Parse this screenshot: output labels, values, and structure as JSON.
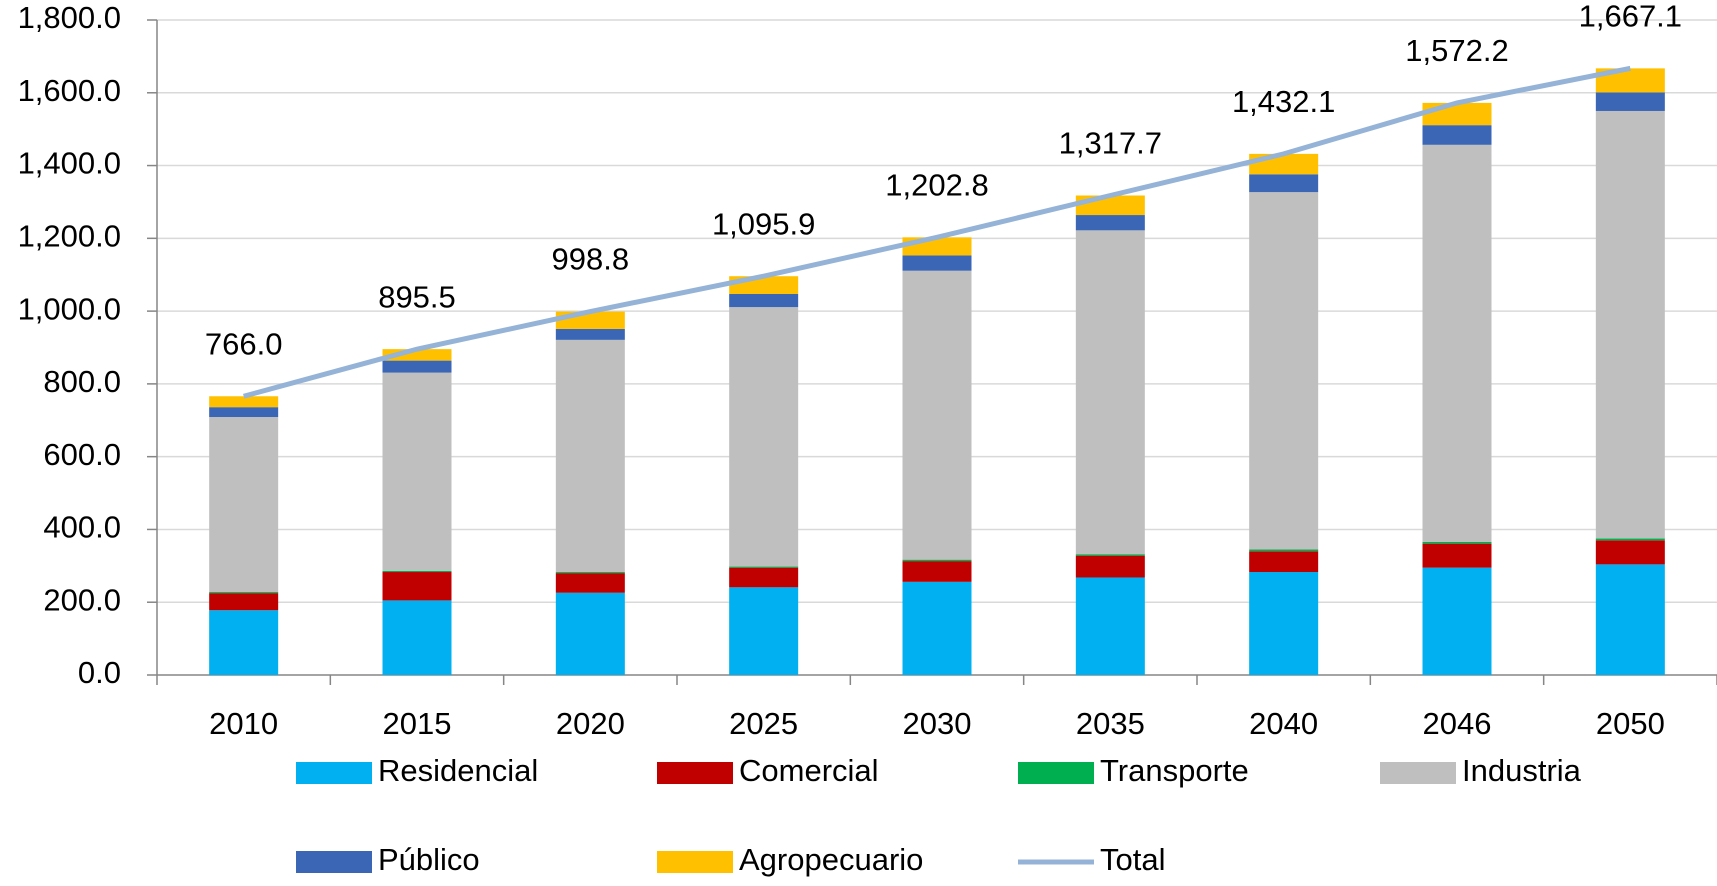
{
  "chart_data": {
    "type": "bar",
    "stacked": true,
    "categories": [
      "2010",
      "2015",
      "2020",
      "2025",
      "2030",
      "2035",
      "2040",
      "2046",
      "2050"
    ],
    "series": [
      {
        "name": "Residencial",
        "color": "#00b0f0",
        "values": [
          178,
          205,
          226,
          241,
          256,
          268,
          283,
          295,
          304
        ]
      },
      {
        "name": "Comercial",
        "color": "#c00000",
        "values": [
          47,
          78,
          54,
          54,
          57,
          60,
          57,
          66,
          66
        ]
      },
      {
        "name": "Transporte",
        "color": "#00b050",
        "values": [
          3,
          3,
          3,
          3,
          4,
          4,
          5,
          5,
          5
        ]
      },
      {
        "name": "Industria",
        "color": "#bfbfbf",
        "values": [
          481,
          545,
          638,
          713,
          794,
          890,
          982,
          1091,
          1175
        ]
      },
      {
        "name": "Público",
        "color": "#3a66b5",
        "values": [
          27,
          33,
          30,
          36,
          42,
          42,
          49,
          54,
          51
        ]
      },
      {
        "name": "Agropecuario",
        "color": "#ffc000",
        "values": [
          30,
          31.5,
          47.8,
          48.9,
          49.8,
          53.7,
          56.1,
          61.2,
          66.1
        ]
      },
      {
        "name": "Total",
        "type": "line",
        "color": "#95b3d7",
        "values": [
          766.0,
          895.5,
          998.8,
          1095.9,
          1202.8,
          1317.7,
          1432.1,
          1572.2,
          1667.1
        ],
        "value_labels": [
          "766.0",
          "895.5",
          "998.8",
          "1,095.9",
          "1,202.8",
          "1,317.7",
          "1,432.1",
          "1,572.2",
          "1,667.1"
        ]
      }
    ],
    "ylim": [
      0,
      1800
    ],
    "yticks": [
      {
        "value": 0,
        "label": "0.0"
      },
      {
        "value": 200,
        "label": "200.0"
      },
      {
        "value": 400,
        "label": "400.0"
      },
      {
        "value": 600,
        "label": "600.0"
      },
      {
        "value": 800,
        "label": "800.0"
      },
      {
        "value": 1000,
        "label": "1,000.0"
      },
      {
        "value": 1200,
        "label": "1,200.0"
      },
      {
        "value": 1400,
        "label": "1,400.0"
      },
      {
        "value": 1600,
        "label": "1,600.0"
      },
      {
        "value": 1800,
        "label": "1,800.0"
      }
    ],
    "grid": true,
    "legend": "bottom"
  }
}
